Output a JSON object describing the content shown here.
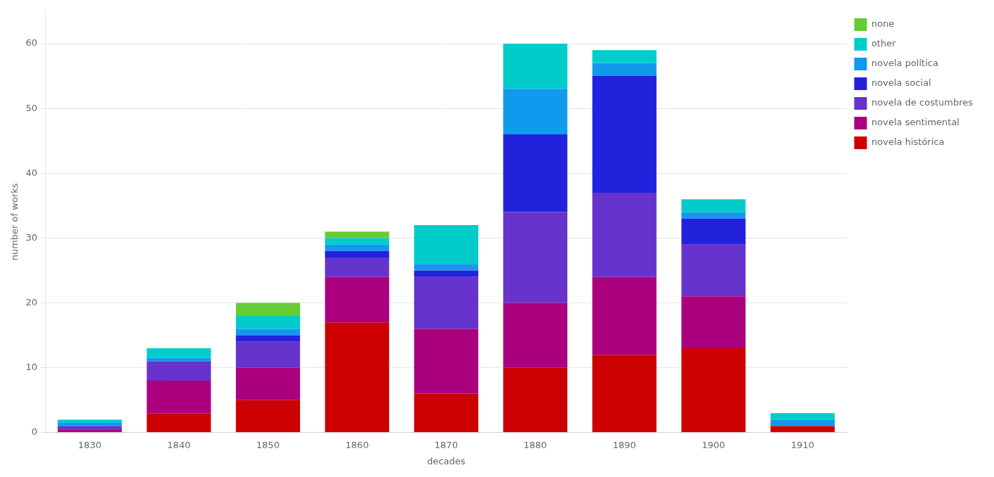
{
  "chart_data": {
    "type": "bar",
    "stacked": true,
    "categories": [
      1830,
      1840,
      1850,
      1860,
      1870,
      1880,
      1890,
      1900,
      1910
    ],
    "series": [
      {
        "name": "novela histórica",
        "color": "#cc0000",
        "values": [
          0,
          3,
          5,
          17,
          6,
          10,
          12,
          13,
          1
        ]
      },
      {
        "name": "novela sentimental",
        "color": "#aa007f",
        "values": [
          0.5,
          5,
          5,
          7,
          10,
          10,
          12,
          8,
          0
        ]
      },
      {
        "name": "novela de costumbres",
        "color": "#6633cc",
        "values": [
          0.5,
          3,
          4,
          3,
          8,
          14,
          13,
          8,
          0
        ]
      },
      {
        "name": "novela social",
        "color": "#2222dd",
        "values": [
          0,
          0,
          1,
          1,
          1,
          12,
          18,
          4,
          0
        ]
      },
      {
        "name": "novela política",
        "color": "#1199ee",
        "values": [
          0.5,
          0.5,
          1,
          1,
          1,
          7,
          2,
          1,
          1
        ]
      },
      {
        "name": "other",
        "color": "#00cccc",
        "values": [
          0.5,
          1.5,
          2,
          1,
          6,
          7,
          2,
          2,
          1
        ]
      },
      {
        "name": "none",
        "color": "#66cc33",
        "values": [
          0,
          0,
          2,
          1,
          0,
          0,
          0,
          0,
          0
        ]
      }
    ],
    "x_label": "decades",
    "y_label": "number of works",
    "ylim": [
      0,
      65
    ],
    "yticks": [
      0,
      10,
      20,
      30,
      40,
      50,
      60
    ],
    "grid": true,
    "legend": "right"
  }
}
